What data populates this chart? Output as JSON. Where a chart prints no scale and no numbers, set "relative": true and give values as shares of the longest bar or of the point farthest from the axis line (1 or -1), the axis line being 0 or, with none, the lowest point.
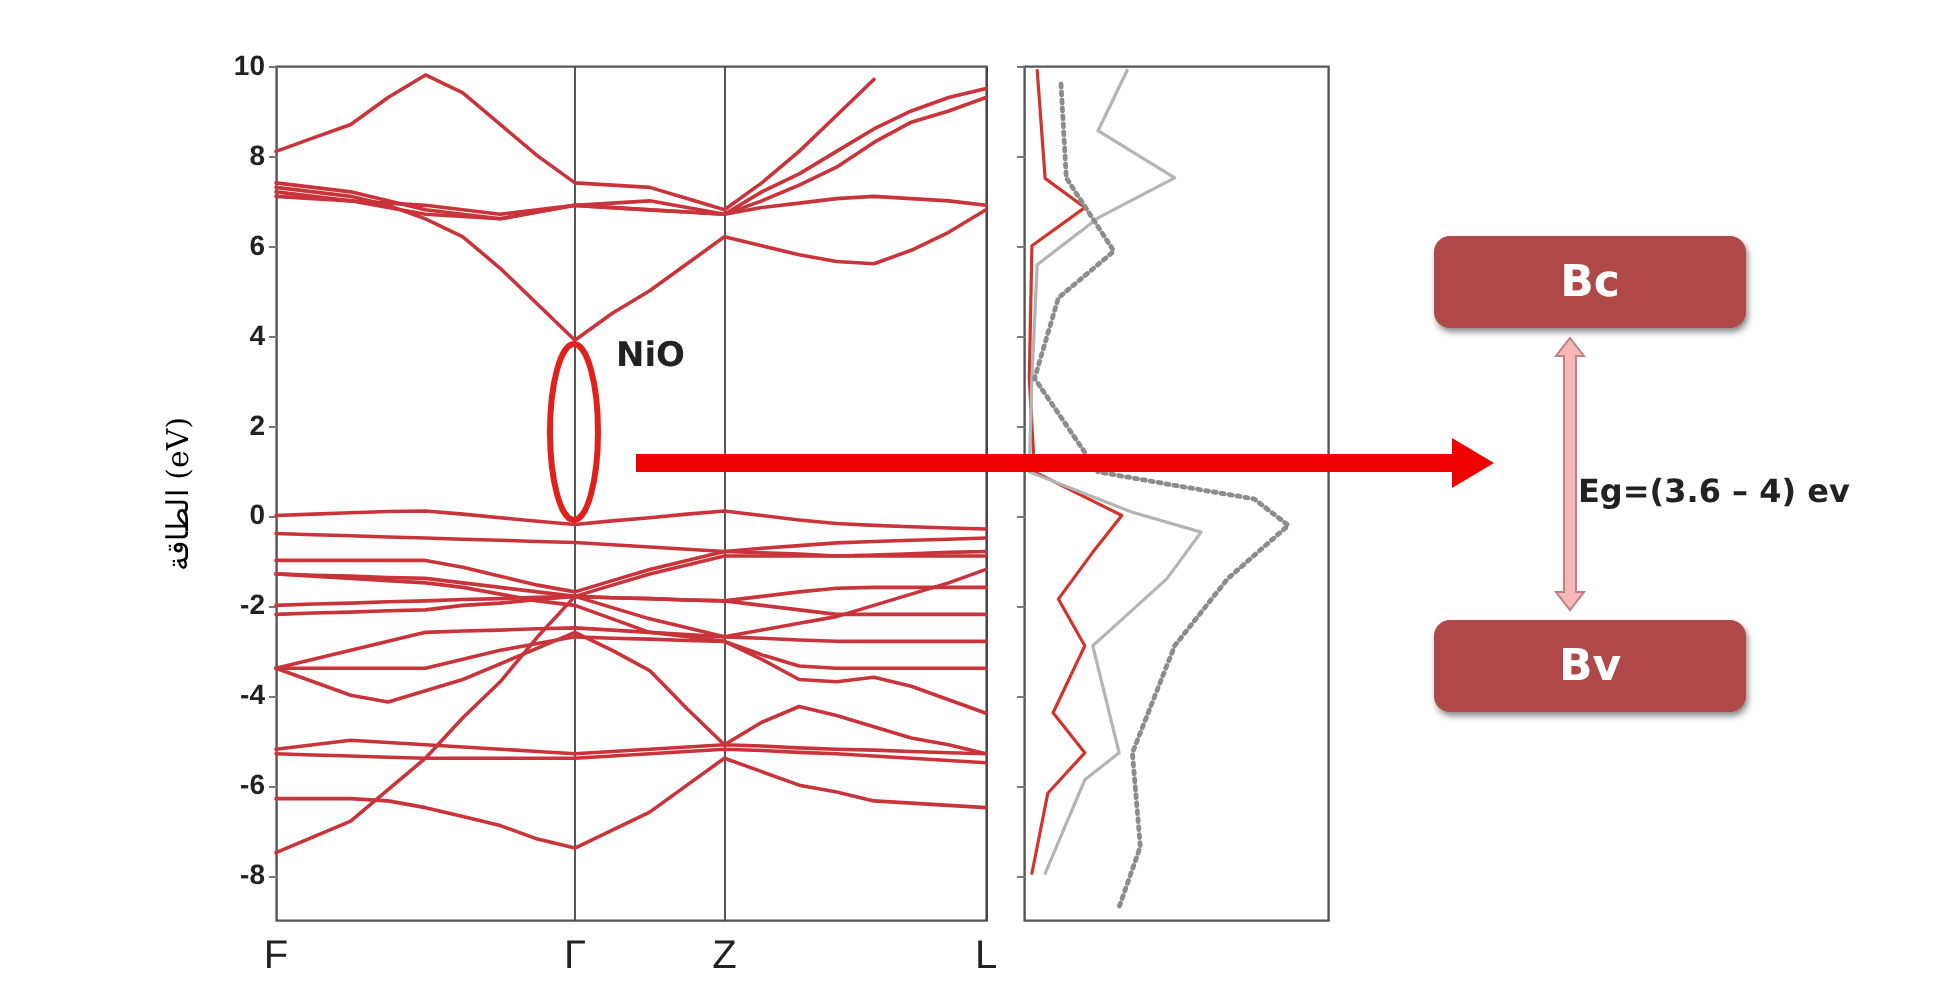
{
  "chart_data": [
    {
      "type": "line",
      "ylabel": "الطاقة (eV)",
      "categories": [
        "F",
        null,
        null,
        null,
        null,
        null,
        null,
        null,
        "Γ",
        null,
        null,
        null,
        "Z",
        null,
        null,
        null,
        null,
        null,
        null,
        "L"
      ],
      "ylim": [
        -9,
        10
      ],
      "yticks": [
        -8,
        -6,
        -4,
        -2,
        0,
        2,
        4,
        6,
        8,
        10
      ],
      "grid": "x",
      "annotations": [
        "NiO"
      ],
      "series": [
        {
          "color": "#c8343a",
          "values": [
            8.1,
            8.4,
            8.7,
            9.3,
            9.8,
            9.4,
            8.7,
            8.0,
            7.4,
            7.35,
            7.3,
            7.05,
            6.8,
            7.4,
            8.1,
            8.9,
            9.7,
            null,
            null,
            null
          ]
        },
        {
          "color": "#c8343a",
          "values": [
            7.3,
            7.2,
            7.1,
            6.9,
            6.6,
            6.2,
            5.5,
            4.7,
            3.9,
            4.5,
            5.0,
            5.6,
            6.2,
            6.0,
            5.8,
            5.65,
            5.6,
            5.9,
            6.3,
            6.8
          ]
        },
        {
          "color": "#c8343a",
          "values": [
            7.2,
            7.1,
            7.0,
            6.85,
            6.7,
            6.65,
            6.6,
            6.75,
            6.9,
            6.85,
            6.8,
            6.75,
            6.7,
            6.85,
            6.95,
            7.05,
            7.1,
            7.05,
            7.0,
            6.9
          ]
        },
        {
          "color": "#c8343a",
          "values": [
            7.4,
            7.3,
            7.2,
            7.0,
            6.8,
            6.7,
            6.6,
            6.75,
            6.9,
            6.95,
            7.0,
            6.85,
            6.7,
            7.2,
            7.6,
            8.1,
            8.6,
            9.0,
            9.3,
            9.5
          ]
        },
        {
          "color": "#c8343a",
          "values": [
            7.1,
            7.05,
            7.0,
            6.95,
            6.9,
            6.8,
            6.7,
            6.8,
            6.9,
            6.85,
            6.8,
            6.75,
            6.7,
            7.0,
            7.35,
            7.75,
            8.3,
            8.75,
            9.0,
            9.3
          ]
        },
        {
          "color": "#c8343a",
          "values": [
            0,
            0.03,
            0.06,
            0.09,
            0.1,
            0.03,
            -0.05,
            -0.13,
            -0.2,
            -0.12,
            -0.05,
            0.03,
            0.1,
            0.0,
            -0.1,
            -0.18,
            -0.22,
            -0.25,
            -0.28,
            -0.3
          ]
        },
        {
          "color": "#c8343a",
          "values": [
            -0.4,
            -0.43,
            -0.45,
            -0.48,
            -0.5,
            -0.53,
            -0.55,
            -0.58,
            -0.6,
            -0.65,
            -0.7,
            -0.75,
            -0.8,
            -0.73,
            -0.67,
            -0.61,
            -0.58,
            -0.55,
            -0.53,
            -0.5
          ]
        },
        {
          "color": "#c8343a",
          "values": [
            -1.0,
            -1.0,
            -1.0,
            -1.0,
            -1.0,
            -1.15,
            -1.35,
            -1.55,
            -1.7,
            -1.45,
            -1.2,
            -1.0,
            -0.8,
            -0.83,
            -0.86,
            -0.9,
            -0.9,
            -0.9,
            -0.9,
            -0.9
          ]
        },
        {
          "color": "#c8343a",
          "values": [
            -1.3,
            -1.33,
            -1.35,
            -1.38,
            -1.4,
            -1.5,
            -1.6,
            -1.7,
            -1.8,
            -1.83,
            -1.85,
            -1.88,
            -1.9,
            -1.8,
            -1.7,
            -1.62,
            -1.6,
            -1.6,
            -1.6,
            -1.6
          ]
        },
        {
          "color": "#c8343a",
          "values": [
            -2.0,
            -1.97,
            -1.95,
            -1.92,
            -1.9,
            -1.87,
            -1.85,
            -1.82,
            -1.8,
            -2.05,
            -2.3,
            -2.5,
            -2.7,
            -2.55,
            -2.4,
            -2.25,
            -2.0,
            -1.75,
            -1.5,
            -1.2
          ]
        },
        {
          "color": "#c8343a",
          "values": [
            -2.2,
            -2.17,
            -2.15,
            -2.12,
            -2.1,
            -2.0,
            -1.95,
            -1.87,
            -1.8,
            -1.83,
            -1.85,
            -1.88,
            -1.9,
            -2.0,
            -2.1,
            -2.2,
            -2.2,
            -2.2,
            -2.2,
            -2.2
          ]
        },
        {
          "color": "#c8343a",
          "values": [
            -3.4,
            -3.2,
            -3.0,
            -2.8,
            -2.6,
            -2.57,
            -2.55,
            -2.52,
            -2.5,
            -2.55,
            -2.6,
            -2.65,
            -2.7,
            -2.73,
            -2.77,
            -2.8,
            -2.8,
            -2.8,
            -2.8,
            -2.8
          ]
        },
        {
          "color": "#c8343a",
          "values": [
            -3.4,
            -3.4,
            -3.4,
            -3.4,
            -3.4,
            -3.2,
            -3.0,
            -2.85,
            -2.7,
            -2.73,
            -2.75,
            -2.78,
            -2.8,
            -3.1,
            -3.35,
            -3.4,
            -3.4,
            -3.4,
            -3.4,
            -3.4
          ]
        },
        {
          "color": "#c8343a",
          "values": [
            -3.4,
            -3.7,
            -4.0,
            -4.15,
            -3.9,
            -3.65,
            -3.3,
            -2.95,
            -2.6,
            -3.0,
            -3.45,
            -4.3,
            -5.1,
            -4.6,
            -4.25,
            -4.45,
            -4.7,
            -4.95,
            -5.1,
            -5.3
          ]
        },
        {
          "color": "#c8343a",
          "values": [
            -7.5,
            -7.15,
            -6.8,
            -6.1,
            -5.4,
            -4.5,
            -3.7,
            -2.7,
            -1.8,
            -1.55,
            -1.3,
            -1.1,
            -0.9,
            -0.9,
            -0.9,
            -0.9,
            -0.88,
            -0.85,
            -0.82,
            -0.8
          ]
        },
        {
          "color": "#c8343a",
          "values": [
            -5.2,
            -5.1,
            -5.0,
            -5.05,
            -5.1,
            -5.15,
            -5.2,
            -5.25,
            -5.3,
            -5.25,
            -5.2,
            -5.15,
            -5.1,
            -5.13,
            -5.17,
            -5.2,
            -5.22,
            -5.25,
            -5.28,
            -5.3
          ]
        },
        {
          "color": "#c8343a",
          "values": [
            -5.3,
            -5.33,
            -5.35,
            -5.38,
            -5.4,
            -5.4,
            -5.4,
            -5.4,
            -5.4,
            -5.35,
            -5.3,
            -5.25,
            -5.2,
            -5.23,
            -5.27,
            -5.3,
            -5.35,
            -5.4,
            -5.45,
            -5.5
          ]
        },
        {
          "color": "#c8343a",
          "values": [
            -6.3,
            -6.3,
            -6.3,
            -6.35,
            -6.5,
            -6.7,
            -6.9,
            -7.2,
            -7.4,
            -7.0,
            -6.6,
            -6.0,
            -5.4,
            -5.7,
            -6.0,
            -6.15,
            -6.35,
            -6.4,
            -6.45,
            -6.5
          ]
        },
        {
          "color": "#c8343a",
          "values": [
            -1.3,
            -1.35,
            -1.4,
            -1.45,
            -1.5,
            -1.6,
            -1.75,
            -1.9,
            -2.0,
            -2.3,
            -2.6,
            -2.7,
            -2.8,
            -3.2,
            -3.65,
            -3.7,
            -3.6,
            -3.8,
            -4.1,
            -4.4
          ]
        }
      ]
    },
    {
      "type": "line",
      "orientation": "horizontal",
      "relative": true,
      "ylim": [
        -9,
        10
      ],
      "yticks": [
        -8,
        -6,
        -4,
        -2,
        0,
        2,
        4,
        6,
        8,
        10
      ],
      "tick_labels": false,
      "series": [
        {
          "color": "#d0342c",
          "line_style": "solid",
          "x": [
            9.9,
            7.5,
            6.85,
            6.0,
            3.05,
            0.97,
            0,
            -0.82,
            -1.86,
            -2.9,
            -4.39,
            -5.28,
            -6.18,
            -7.37,
            -7.96
          ],
          "values": [
            0.05,
            0.08,
            0.23,
            0.03,
            0.02,
            0.04,
            0.37,
            0.26,
            0.13,
            0.23,
            0.11,
            0.23,
            0.09,
            0.05,
            0.03
          ]
        },
        {
          "color": "#b4b4b4",
          "line_style": "solid",
          "x": [
            9.9,
            8.56,
            7.51,
            6.62,
            5.58,
            3.05,
            0.97,
            0.07,
            -0.37,
            -1.41,
            -2.9,
            -5.28,
            -5.88,
            -7.96
          ],
          "values": [
            0.39,
            0.28,
            0.57,
            0.28,
            0.05,
            0.03,
            0.02,
            0.41,
            0.67,
            0.54,
            0.26,
            0.36,
            0.23,
            0.08
          ]
        },
        {
          "color": "#8c8c8c",
          "line_style": "dotted",
          "x": [
            9.6,
            7.51,
            5.88,
            4.84,
            3.05,
            0.97,
            0.67,
            0.37,
            -0.22,
            -1.41,
            -2.9,
            -5.28,
            -7.37,
            -8.71
          ],
          "values": [
            0.14,
            0.16,
            0.34,
            0.13,
            0.04,
            0.28,
            0.57,
            0.87,
            1.0,
            0.77,
            0.57,
            0.41,
            0.44,
            0.36
          ]
        }
      ]
    },
    {
      "type": "other",
      "annotations": [
        "Bc",
        "Eg=(3.6 – 4) ev",
        "Bv"
      ]
    }
  ]
}
